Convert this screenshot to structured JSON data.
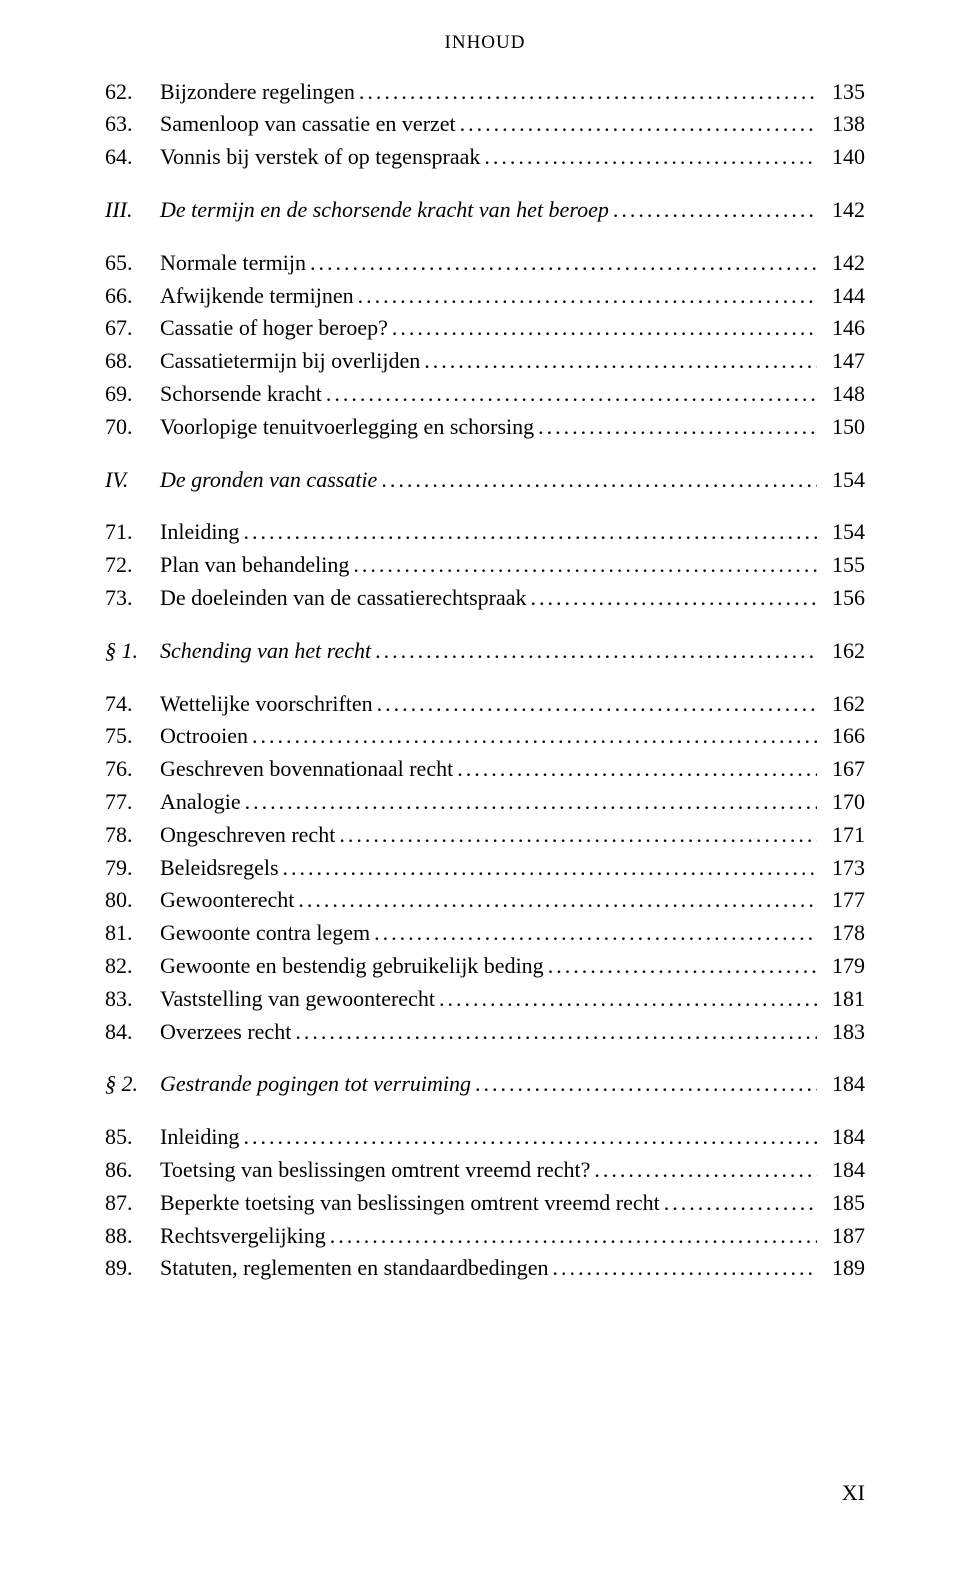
{
  "header": "INHOUD",
  "entries": [
    {
      "num": "62.",
      "text": "Bijzondere regelingen",
      "page": "135",
      "type": "entry"
    },
    {
      "num": "63.",
      "text": "Samenloop van cassatie en verzet",
      "page": "138",
      "type": "entry"
    },
    {
      "num": "64.",
      "text": "Vonnis bij verstek of op tegenspraak",
      "page": "140",
      "type": "entry"
    },
    {
      "num": "III.",
      "text": "De termijn en de schorsende kracht van het beroep",
      "page": "142",
      "type": "section"
    },
    {
      "num": "65.",
      "text": "Normale termijn",
      "page": "142",
      "type": "entry"
    },
    {
      "num": "66.",
      "text": "Afwijkende termijnen",
      "page": "144",
      "type": "entry"
    },
    {
      "num": "67.",
      "text": "Cassatie of hoger beroep?",
      "page": "146",
      "type": "entry"
    },
    {
      "num": "68.",
      "text": "Cassatietermijn bij overlijden",
      "page": "147",
      "type": "entry"
    },
    {
      "num": "69.",
      "text": "Schorsende kracht",
      "page": "148",
      "type": "entry"
    },
    {
      "num": "70.",
      "text": "Voorlopige tenuitvoerlegging en schorsing",
      "page": "150",
      "type": "entry"
    },
    {
      "num": "IV.",
      "text": "De gronden van cassatie",
      "page": "154",
      "type": "section"
    },
    {
      "num": "71.",
      "text": "Inleiding",
      "page": "154",
      "type": "entry"
    },
    {
      "num": "72.",
      "text": "Plan van behandeling",
      "page": "155",
      "type": "entry"
    },
    {
      "num": "73.",
      "text": "De doeleinden van de cassatierechtspraak",
      "page": "156",
      "type": "entry"
    },
    {
      "num": "§ 1.",
      "text": "Schending van het recht",
      "page": "162",
      "type": "section"
    },
    {
      "num": "74.",
      "text": "Wettelijke voorschriften",
      "page": "162",
      "type": "entry"
    },
    {
      "num": "75.",
      "text": "Octrooien",
      "page": "166",
      "type": "entry"
    },
    {
      "num": "76.",
      "text": "Geschreven bovennationaal recht",
      "page": "167",
      "type": "entry"
    },
    {
      "num": "77.",
      "text": "Analogie",
      "page": "170",
      "type": "entry"
    },
    {
      "num": "78.",
      "text": "Ongeschreven recht",
      "page": "171",
      "type": "entry"
    },
    {
      "num": "79.",
      "text": "Beleidsregels",
      "page": "173",
      "type": "entry"
    },
    {
      "num": "80.",
      "text": "Gewoonterecht",
      "page": "177",
      "type": "entry"
    },
    {
      "num": "81.",
      "text": "Gewoonte contra legem",
      "page": "178",
      "type": "entry"
    },
    {
      "num": "82.",
      "text": "Gewoonte en bestendig gebruikelijk beding",
      "page": "179",
      "type": "entry"
    },
    {
      "num": "83.",
      "text": "Vaststelling van gewoonterecht",
      "page": "181",
      "type": "entry"
    },
    {
      "num": "84.",
      "text": "Overzees recht",
      "page": "183",
      "type": "entry"
    },
    {
      "num": "§ 2.",
      "text": "Gestrande pogingen tot verruiming",
      "page": "184",
      "type": "section"
    },
    {
      "num": "85.",
      "text": "Inleiding",
      "page": "184",
      "type": "entry"
    },
    {
      "num": "86.",
      "text": "Toetsing van beslissingen omtrent vreemd recht?",
      "page": "184",
      "type": "entry"
    },
    {
      "num": "87.",
      "text": "Beperkte toetsing van beslissingen omtrent vreemd recht",
      "page": "185",
      "type": "entry"
    },
    {
      "num": "88.",
      "text": "Rechtsvergelijking",
      "page": "187",
      "type": "entry"
    },
    {
      "num": "89.",
      "text": "Statuten, reglementen en standaardbedingen",
      "page": "189",
      "type": "entry"
    }
  ],
  "footer": "XI"
}
